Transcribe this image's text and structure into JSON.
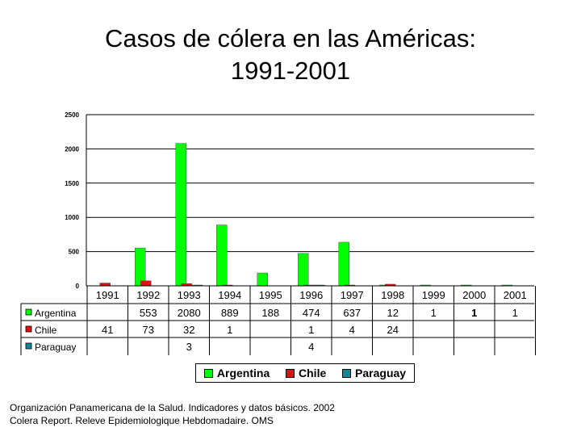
{
  "title": {
    "line1": "Casos de cólera en las Américas:",
    "line2": "1991-2001"
  },
  "source": {
    "line1": "Organización Panamericana de la Salud. Indicadores y datos básicos. 2002",
    "line2": "Colera Report. Releve Epidemiologique Hebdomadaire. OMS"
  },
  "chart_data": {
    "type": "bar",
    "categories": [
      "1991",
      "1992",
      "1993",
      "1994",
      "1995",
      "1996",
      "1997",
      "1998",
      "1999",
      "2000",
      "2001"
    ],
    "ylim": [
      0,
      2500
    ],
    "yticks": [
      "0",
      "500",
      "1000",
      "1500",
      "2000",
      "2500"
    ],
    "grid": "horizontal",
    "legend_position": "bottom",
    "series": [
      {
        "name": "Argentina",
        "color": "#00ff00",
        "values": [
          null,
          553,
          2080,
          889,
          188,
          474,
          637,
          12,
          1,
          1,
          1
        ],
        "labels": [
          "",
          "553",
          "2080",
          "889",
          "188",
          "474",
          "637",
          "12",
          "1",
          "1",
          "1"
        ]
      },
      {
        "name": "Chile",
        "color": "#dd1111",
        "values": [
          41,
          73,
          32,
          1,
          null,
          1,
          4,
          24,
          null,
          null,
          null
        ],
        "labels": [
          "41",
          "73",
          "32",
          "1",
          "",
          "1",
          "4",
          "24",
          "",
          "",
          ""
        ]
      },
      {
        "name": "Paraguay",
        "color": "#118899",
        "values": [
          null,
          null,
          3,
          null,
          null,
          4,
          null,
          null,
          null,
          null,
          null
        ],
        "labels": [
          "",
          "",
          "3",
          "",
          "",
          "4",
          "",
          "",
          "",
          "",
          ""
        ]
      }
    ]
  }
}
